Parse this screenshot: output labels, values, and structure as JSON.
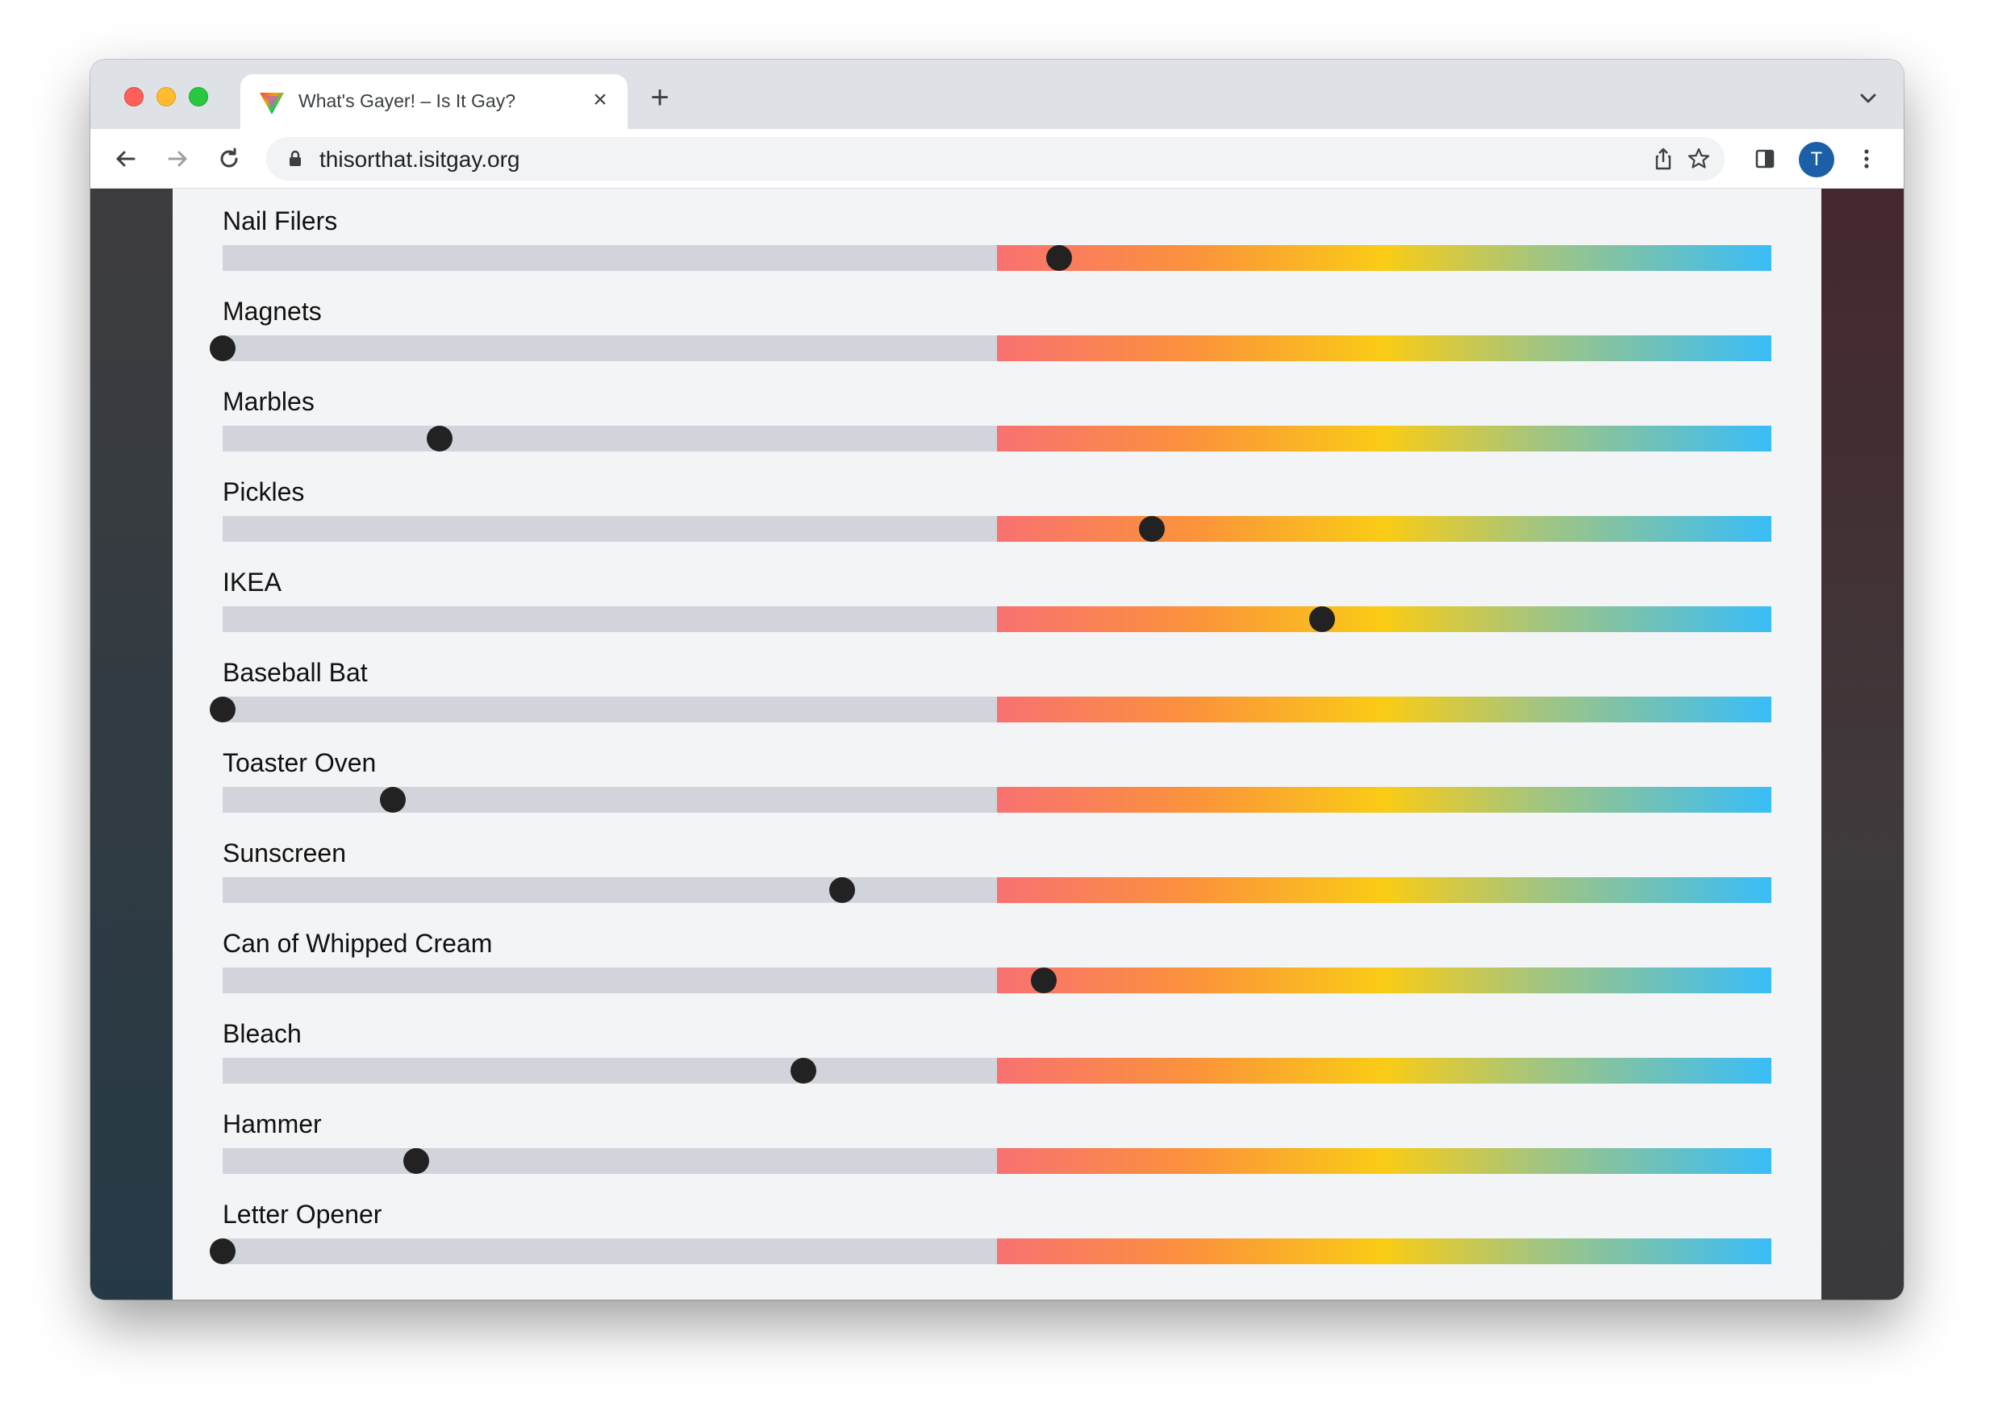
{
  "browser": {
    "tab_title": "What's Gayer! – Is It Gay?",
    "tab_close": "×",
    "new_tab": "+",
    "url": "thisorthat.isitgay.org",
    "avatar_initial": "T"
  },
  "items": [
    {
      "label": "Nail Filers",
      "value": 0.54
    },
    {
      "label": "Magnets",
      "value": 0.0
    },
    {
      "label": "Marbles",
      "value": 0.14
    },
    {
      "label": "Pickles",
      "value": 0.6
    },
    {
      "label": "IKEA",
      "value": 0.71
    },
    {
      "label": "Baseball Bat",
      "value": 0.0
    },
    {
      "label": "Toaster Oven",
      "value": 0.11
    },
    {
      "label": "Sunscreen",
      "value": 0.4
    },
    {
      "label": "Can of Whipped Cream",
      "value": 0.53
    },
    {
      "label": "Bleach",
      "value": 0.375
    },
    {
      "label": "Hammer",
      "value": 0.125
    },
    {
      "label": "Letter Opener",
      "value": 0.0
    }
  ]
}
